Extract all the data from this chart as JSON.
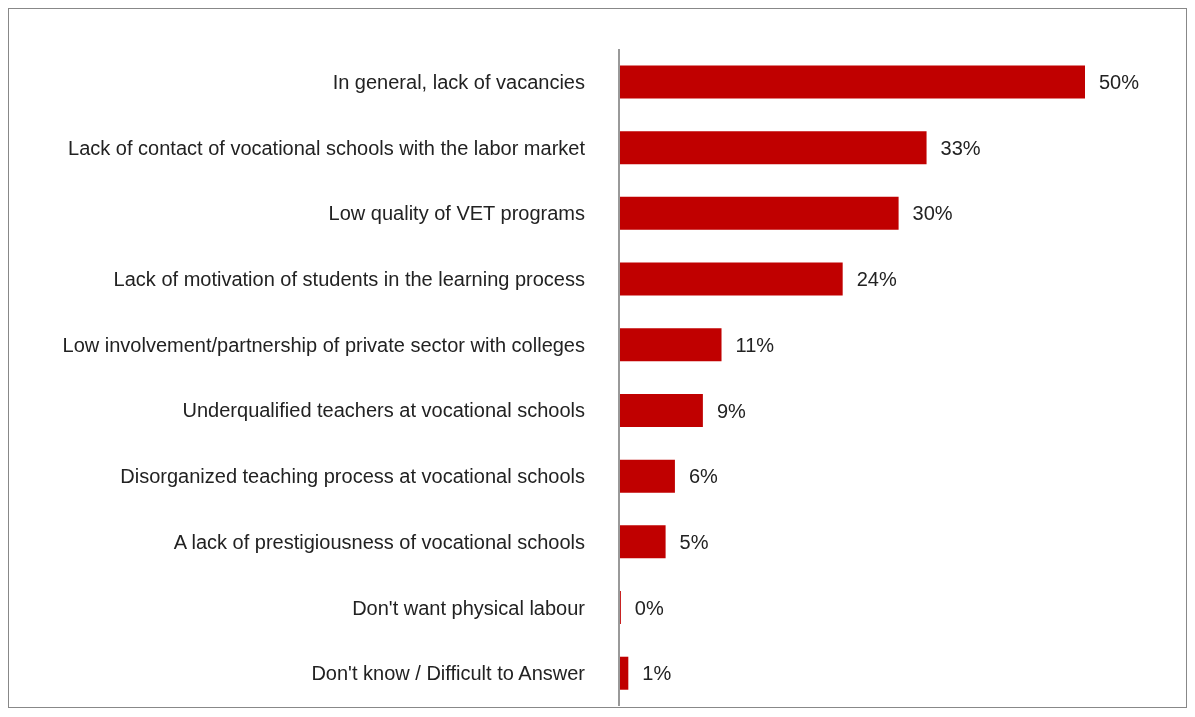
{
  "chart_data": {
    "type": "bar",
    "orientation": "horizontal",
    "categories": [
      "In general, lack of vacancies",
      "Lack of contact of vocational schools with the labor market",
      "Low quality of VET programs",
      "Lack of motivation of students in the learning process",
      "Low involvement/partnership of private sector with colleges",
      "Underqualified teachers at vocational schools",
      "Disorganized teaching process at vocational schools",
      "A lack of prestigiousness of vocational schools",
      "Don't want physical labour",
      "Don't know / Difficult to Answer"
    ],
    "values": [
      50,
      33,
      30,
      24,
      11,
      9,
      6,
      5,
      0.2,
      1
    ],
    "value_labels": [
      "50%",
      "33%",
      "30%",
      "24%",
      "11%",
      "9%",
      "6%",
      "5%",
      "0%",
      "1%"
    ],
    "color": "#c00000"
  }
}
